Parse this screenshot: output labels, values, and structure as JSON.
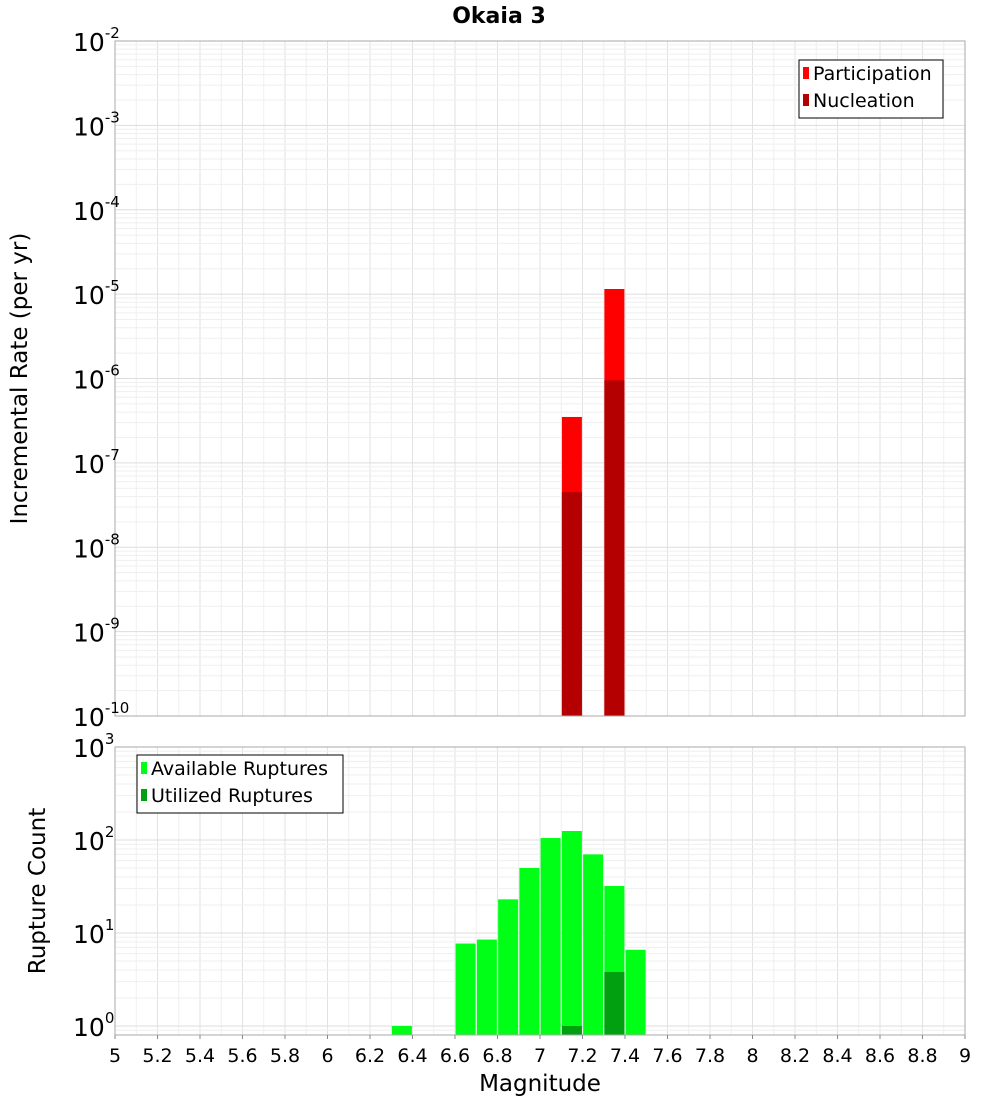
{
  "title": "Okaia 3",
  "colors": {
    "participation": "#ff0000",
    "nucleation": "#b40000",
    "available": "#00ff16",
    "utilized": "#00a010"
  },
  "chart_data": [
    {
      "type": "bar",
      "name": "rate",
      "ylabel": "Incremental Rate (per yr)",
      "yscale": "log",
      "ylim": [
        1e-10,
        0.01
      ],
      "xlim": [
        5,
        9
      ],
      "grid": true,
      "legend_position": "top-right",
      "y_tick_exponents": [
        -2,
        -3,
        -4,
        -5,
        -6,
        -7,
        -8,
        -9,
        -10
      ],
      "series": [
        {
          "name": "Participation",
          "color": "#ff0000",
          "x": [
            7.15,
            7.35
          ],
          "values": [
            3.5e-07,
            1.15e-05
          ]
        },
        {
          "name": "Nucleation",
          "color": "#b40000",
          "x": [
            7.15,
            7.35
          ],
          "values": [
            4.5e-08,
            9.5e-07
          ]
        }
      ]
    },
    {
      "type": "bar",
      "name": "count",
      "ylabel": "Rupture Count",
      "xlabel": "Magnitude",
      "yscale": "log",
      "ylim": [
        0.8,
        1000
      ],
      "xlim": [
        5,
        9
      ],
      "grid": true,
      "legend_position": "top-left",
      "y_tick_exponents": [
        3,
        2,
        1,
        0
      ],
      "x_ticks": [
        "5",
        "5.2",
        "5.4",
        "5.6",
        "5.8",
        "6",
        "6.2",
        "6.4",
        "6.6",
        "6.8",
        "7",
        "7.2",
        "7.4",
        "7.6",
        "7.8",
        "8",
        "8.2",
        "8.4",
        "8.6",
        "8.8",
        "9"
      ],
      "series": [
        {
          "name": "Available Ruptures",
          "color": "#00ff16",
          "x": [
            6.35,
            6.65,
            6.75,
            6.85,
            6.95,
            7.05,
            7.15,
            7.25,
            7.35,
            7.45
          ],
          "values": [
            1,
            7.7,
            8.5,
            23,
            50,
            105,
            125,
            70,
            32,
            6.6
          ]
        },
        {
          "name": "Utilized Ruptures",
          "color": "#00a010",
          "x": [
            7.15,
            7.35
          ],
          "values": [
            1,
            3.8
          ]
        }
      ]
    }
  ]
}
